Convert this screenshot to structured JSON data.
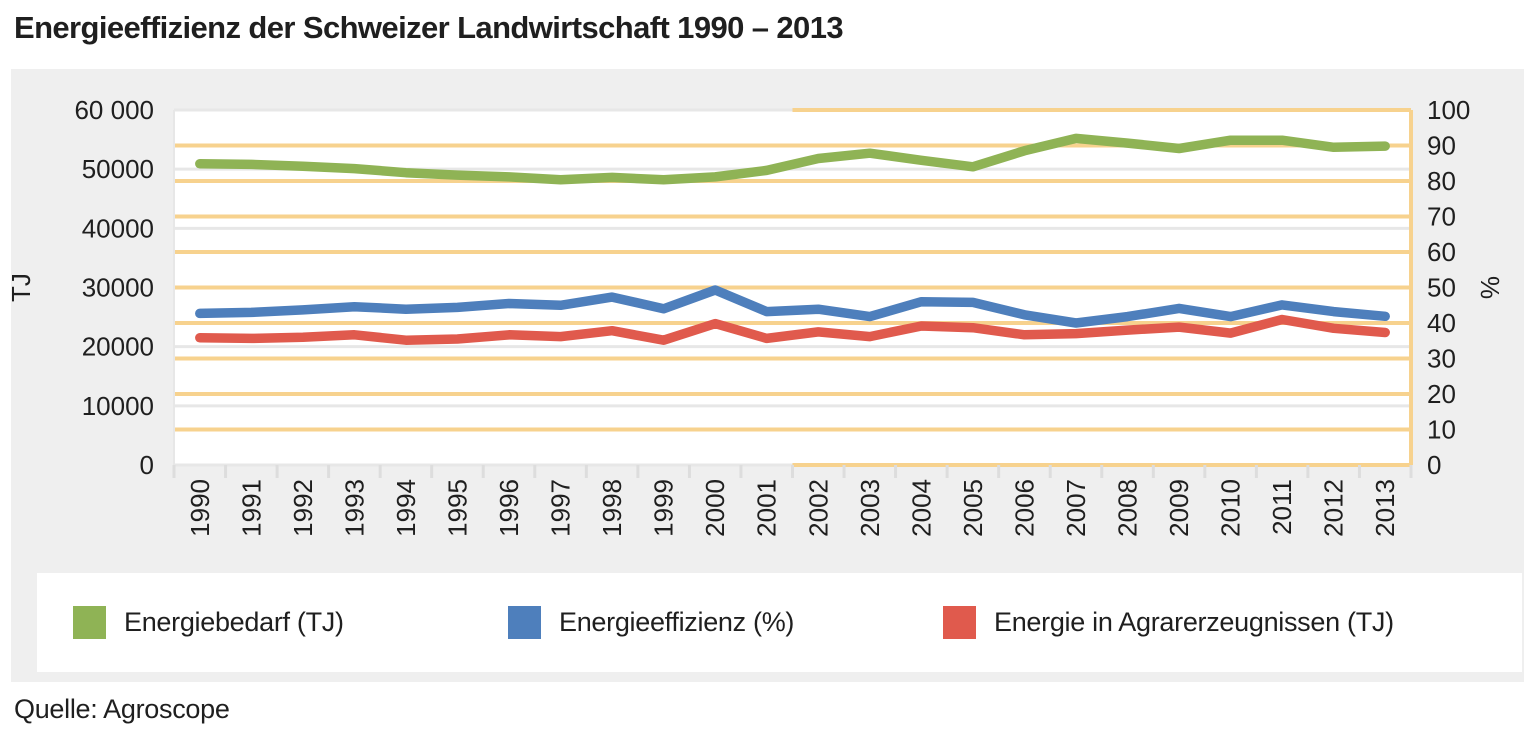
{
  "window": {
    "title": "Energieeffizienz der Schweizer Landwirtschaft 1990 – 2013"
  },
  "source_line": "Quelle: Agroscope",
  "colors": {
    "panel_background": "#efefef",
    "plot_background": "#ffffff",
    "tj_gridline": "#e7e7e7",
    "percent_gridline": "#f7d28e",
    "tick_mark": "#dddddd",
    "axis_text": "#1f1f1f",
    "series_green": "#8fb355",
    "series_blue": "#4e7fbc",
    "series_red": "#e05a4d"
  },
  "chart_data": {
    "type": "line",
    "title": "Energieeffizienz der Schweizer Landwirtschaft 1990 – 2013",
    "categories": [
      "1990",
      "1991",
      "1992",
      "1993",
      "1994",
      "1995",
      "1996",
      "1997",
      "1998",
      "1999",
      "2000",
      "2001",
      "2002",
      "2003",
      "2004",
      "2005",
      "2006",
      "2007",
      "2008",
      "2009",
      "2010",
      "2011",
      "2012",
      "2013"
    ],
    "series": [
      {
        "name": "Energiebedarf (TJ)",
        "axis": "left",
        "color": "#8fb355",
        "values": [
          50900,
          50800,
          50500,
          50100,
          49400,
          49000,
          48700,
          48200,
          48600,
          48200,
          48700,
          49800,
          51800,
          52700,
          51500,
          50400,
          53100,
          55200,
          54400,
          53500,
          54900,
          54900,
          53700,
          53900
        ]
      },
      {
        "name": "Energieeffizienz (%)",
        "axis": "right",
        "color": "#4e7fbc",
        "values": [
          42.7,
          43.0,
          43.7,
          44.6,
          43.9,
          44.4,
          45.5,
          45.0,
          47.3,
          44.0,
          49.3,
          43.2,
          43.9,
          41.8,
          46.0,
          45.8,
          42.3,
          40.0,
          41.8,
          44.1,
          41.8,
          45.1,
          43.2,
          41.9
        ]
      },
      {
        "name": "Energie in Agrarerzeugnissen (TJ)",
        "axis": "left",
        "color": "#e05a4d",
        "values": [
          21500,
          21400,
          21600,
          22000,
          21100,
          21300,
          22000,
          21700,
          22700,
          21100,
          23900,
          21400,
          22500,
          21700,
          23500,
          23200,
          22000,
          22200,
          22800,
          23300,
          22300,
          24600,
          23100,
          22400
        ]
      }
    ],
    "left_axis": {
      "label": "TJ",
      "min": 0,
      "max": 60000,
      "tick_labels": [
        "60 000",
        "50000",
        "40000",
        "30000",
        "20000",
        "10000",
        "0"
      ]
    },
    "right_axis": {
      "label": "%",
      "min": 0,
      "max": 100,
      "tick_labels": [
        "100",
        "90",
        "80",
        "70",
        "60",
        "50",
        "40",
        "30",
        "20",
        "10",
        "0"
      ]
    },
    "x_axis": {
      "label_rotation_deg": -90
    },
    "legend_position": "bottom",
    "grid": {
      "horizontal": true,
      "vertical": false
    }
  }
}
